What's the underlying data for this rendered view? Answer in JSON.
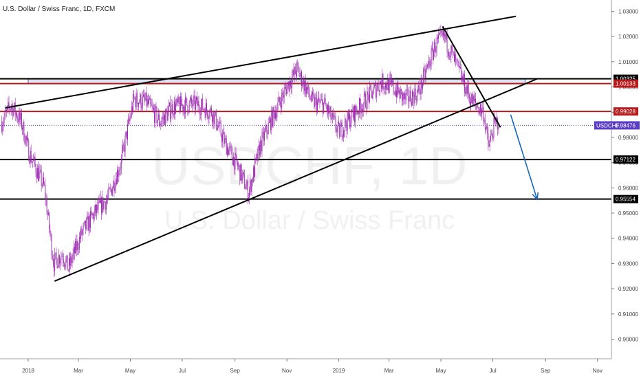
{
  "header": {
    "title": "U.S. Dollar / Swiss Franc, 1D, FXCM"
  },
  "watermark": {
    "symbol": "USDCHF, 1D",
    "name": "U.S. Dollar / Swiss Franc"
  },
  "colors": {
    "candle": "#9c27b0",
    "support_line": "#000000",
    "resistance_line": "#b71c1c",
    "zone_fill": "#c5cae9",
    "zone_stroke": "#3f51b5",
    "arrow": "#1565c0",
    "price_label": "#5b3cc4"
  },
  "chart_data": {
    "type": "candlestick",
    "symbol": "USDCHF",
    "timeframe": "1D",
    "ylim": [
      0.894,
      1.034
    ],
    "y_ticks": [
      "1.03000",
      "1.02000",
      "1.01000",
      "1.00000",
      "0.99000",
      "0.98000",
      "0.97000",
      "0.96000",
      "0.95000",
      "0.94000",
      "0.93000",
      "0.92000",
      "0.91000",
      "0.90000"
    ],
    "x_labels": [
      "2018",
      "Mar",
      "May",
      "Jul",
      "Sep",
      "Nov",
      "2019",
      "Mar",
      "May",
      "Jul",
      "Sep",
      "Nov"
    ],
    "path_points": [
      [
        "2017-12-01",
        0.986
      ],
      [
        "2017-12-12",
        0.993
      ],
      [
        "2017-12-24",
        0.986
      ],
      [
        "2018-01-02",
        0.974
      ],
      [
        "2018-01-20",
        0.96
      ],
      [
        "2018-01-31",
        0.93
      ],
      [
        "2018-02-10",
        0.934
      ],
      [
        "2018-02-17",
        0.928
      ],
      [
        "2018-03-05",
        0.942
      ],
      [
        "2018-03-20",
        0.95
      ],
      [
        "2018-04-05",
        0.956
      ],
      [
        "2018-04-20",
        0.97
      ],
      [
        "2018-05-05",
        0.995
      ],
      [
        "2018-05-20",
        0.994
      ],
      [
        "2018-06-05",
        0.986
      ],
      [
        "2018-06-20",
        0.992
      ],
      [
        "2018-07-05",
        0.993
      ],
      [
        "2018-07-20",
        0.993
      ],
      [
        "2018-08-05",
        0.99
      ],
      [
        "2018-08-20",
        0.978
      ],
      [
        "2018-09-05",
        0.968
      ],
      [
        "2018-09-17",
        0.958
      ],
      [
        "2018-10-01",
        0.977
      ],
      [
        "2018-10-15",
        0.988
      ],
      [
        "2018-11-01",
        1.0
      ],
      [
        "2018-11-13",
        1.007
      ],
      [
        "2018-12-01",
        0.994
      ],
      [
        "2018-12-15",
        0.993
      ],
      [
        "2019-01-01",
        0.982
      ],
      [
        "2019-01-20",
        0.99
      ],
      [
        "2019-02-05",
        0.996
      ],
      [
        "2019-02-20",
        1.002
      ],
      [
        "2019-03-05",
        1.0
      ],
      [
        "2019-03-20",
        0.995
      ],
      [
        "2019-04-05",
        0.998
      ],
      [
        "2019-04-25",
        1.017
      ],
      [
        "2019-05-05",
        1.02
      ],
      [
        "2019-05-20",
        1.008
      ],
      [
        "2019-06-05",
        0.995
      ],
      [
        "2019-06-20",
        0.99
      ],
      [
        "2019-06-26",
        0.976
      ],
      [
        "2019-07-02",
        0.984
      ],
      [
        "2019-07-08",
        0.987
      ]
    ],
    "trendlines": [
      {
        "name": "upper-channel",
        "from": [
          "2017-12-05",
          0.9917
        ],
        "to": [
          "2019-07-28",
          1.028
        ]
      },
      {
        "name": "rising-support",
        "from": [
          "2018-02-01",
          0.923
        ],
        "to": [
          "2019-08-22",
          1.0032
        ]
      },
      {
        "name": "falling-resistance",
        "from": [
          "2019-05-03",
          1.024
        ],
        "to": [
          "2019-07-10",
          0.984
        ]
      }
    ],
    "levels": [
      {
        "value": 1.00325,
        "label": "1.00325",
        "style": "support"
      },
      {
        "value": 1.00133,
        "label": "1.00133",
        "style": "resistance"
      },
      {
        "value": 0.99028,
        "label": "0.99028",
        "style": "resistance"
      },
      {
        "value": 0.97122,
        "label": "0.97122",
        "style": "support"
      },
      {
        "value": 0.95554,
        "label": "0.95554",
        "style": "support"
      }
    ],
    "zone": {
      "from": "2018-01-01",
      "to": "2019-08-08",
      "low": 1.0013,
      "high": 1.0032
    },
    "current_price": {
      "label": "USDCHF",
      "value": "0.98476",
      "price": 0.98476
    },
    "projection_arrow": {
      "from": [
        "2019-07-22",
        0.989
      ],
      "to": [
        "2019-08-22",
        0.9555
      ]
    }
  }
}
